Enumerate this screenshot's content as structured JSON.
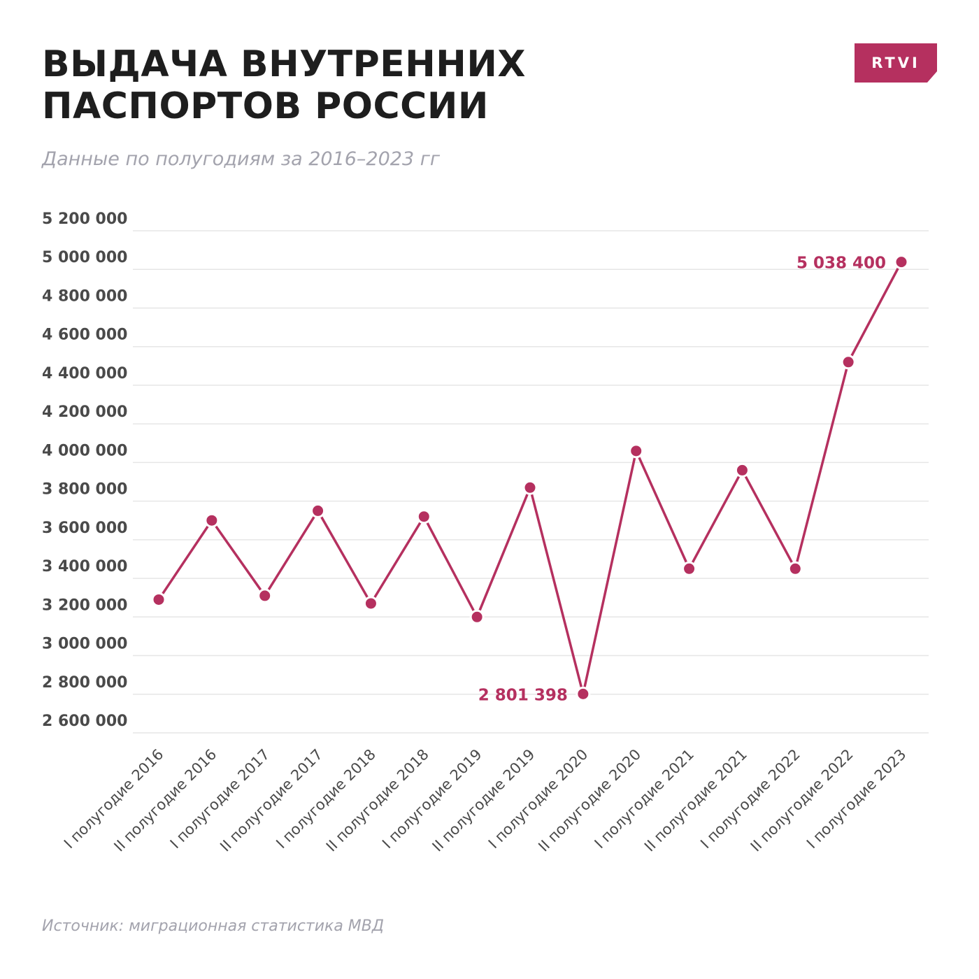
{
  "header": {
    "title_line1": "ВЫДАЧА ВНУТРЕННИХ",
    "title_line2": "ПАСПОРТОВ РОССИИ",
    "subtitle": "Данные по полугодиям за 2016–2023 гг"
  },
  "logo": {
    "text": "RTVI",
    "color": "#b5305f"
  },
  "source": "Источник: миграционная статистика МВД",
  "colors": {
    "accent": "#b5305f",
    "grid": "#e6e6e6",
    "text": "#4a4a4a"
  },
  "chart_data": {
    "type": "line",
    "title": "",
    "xlabel": "",
    "ylabel": "",
    "categories": [
      "I полугодие 2016",
      "II полугодие 2016",
      "I полугодие 2017",
      "II полугодие 2017",
      "I полугодие 2018",
      "II полугодие 2018",
      "I полугодие 2019",
      "II полугодие 2019",
      "I полугодие 2020",
      "II полугодие 2020",
      "I полугодие 2021",
      "II полугодие 2021",
      "I полугодие 2022",
      "II полугодие 2022",
      "I полугодие 2023"
    ],
    "series": [
      {
        "values": [
          3290000,
          3700000,
          3310000,
          3750000,
          3270000,
          3720000,
          3200000,
          3870000,
          2801398,
          4060000,
          3450000,
          3960000,
          3450000,
          4520000,
          5038400
        ]
      }
    ],
    "ylim": [
      2600000,
      5200000
    ],
    "yticks": [
      2600000,
      2800000,
      3000000,
      3200000,
      3400000,
      3600000,
      3800000,
      4000000,
      4200000,
      4400000,
      4600000,
      4800000,
      5000000,
      5200000
    ],
    "ytick_labels": [
      "2 600 000",
      "2 800 000",
      "3 000 000",
      "3 200 000",
      "3 400 000",
      "3 600 000",
      "3 800 000",
      "4 000 000",
      "4 200 000",
      "4 400 000",
      "4 600 000",
      "4 800 000",
      "5 000 000",
      "5 200 000"
    ],
    "annotations": [
      {
        "index": 8,
        "text": "2 801 398",
        "side": "left"
      },
      {
        "index": 14,
        "text": "5 038 400",
        "side": "left"
      }
    ],
    "grid": true,
    "legend": "none"
  }
}
